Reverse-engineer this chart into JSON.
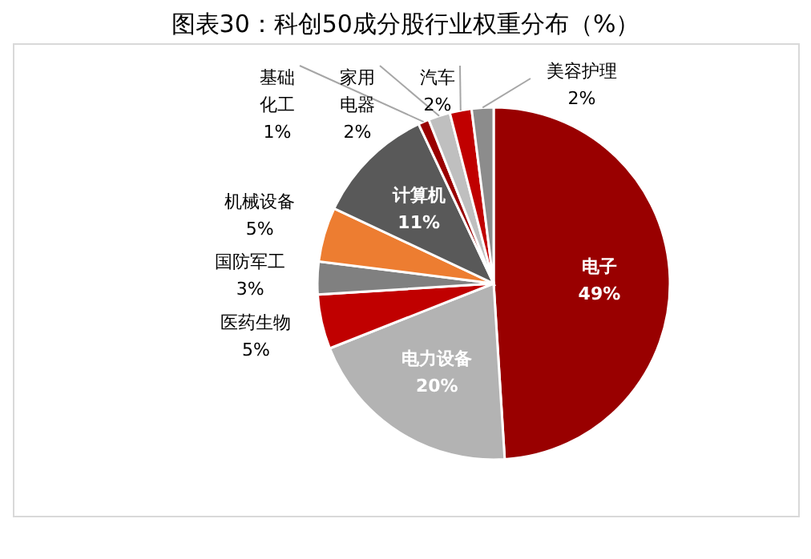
{
  "chart_data": {
    "type": "pie",
    "title": "图表30：科创50成分股行业权重分布（%）",
    "categories": [
      "电子",
      "电力设备",
      "医药生物",
      "国防军工",
      "机械设备",
      "计算机",
      "基础化工",
      "家用电器",
      "汽车",
      "美容护理"
    ],
    "values": [
      49,
      20,
      5,
      3,
      5,
      11,
      1,
      2,
      2,
      2
    ],
    "value_labels": [
      "49%",
      "20%",
      "5%",
      "3%",
      "5%",
      "11%",
      "1%",
      "2%",
      "2%",
      "2%"
    ],
    "colors": [
      "#990000",
      "#b3b3b3",
      "#c00000",
      "#808080",
      "#ed7d31",
      "#595959",
      "#990000",
      "#bfbfbf",
      "#c00000",
      "#8c8c8c"
    ],
    "legend": false
  }
}
